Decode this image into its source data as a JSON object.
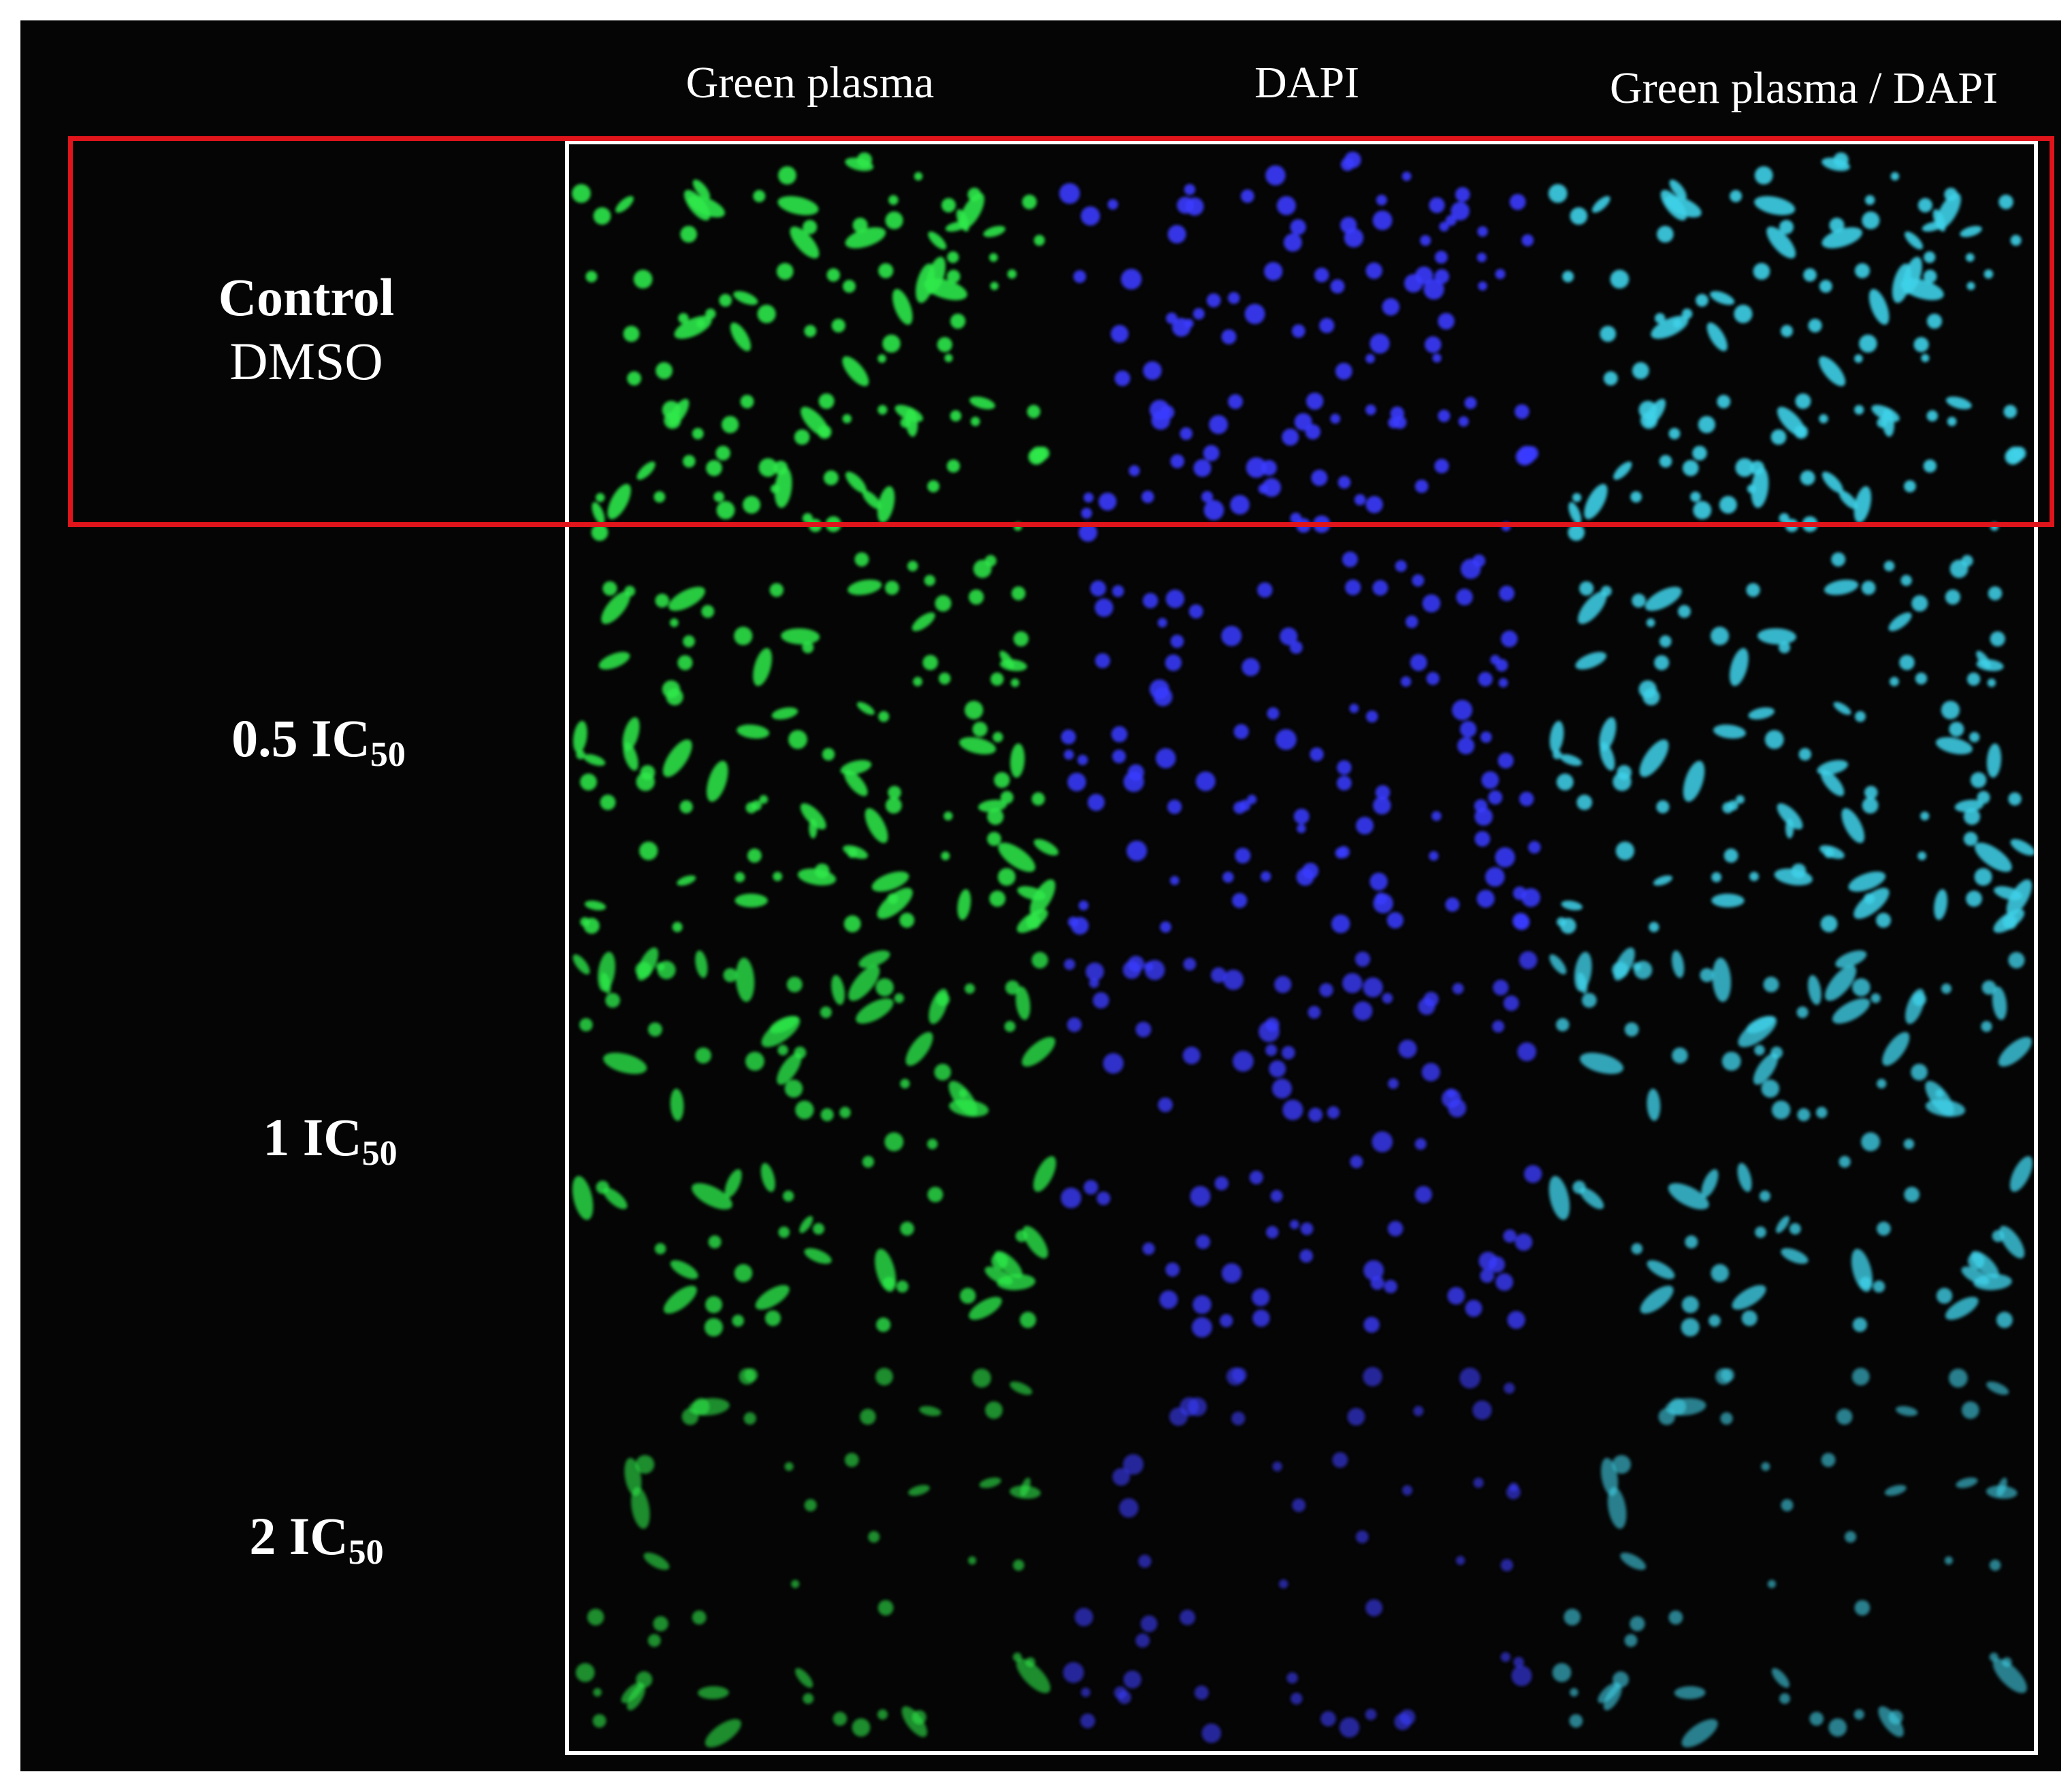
{
  "columns": [
    "Green plasma",
    "DAPI",
    "Green plasma / DAPI"
  ],
  "rows": [
    {
      "label": "Control",
      "sublabel": "DMSO",
      "highlighted": true,
      "intensity": 1.0
    },
    {
      "label": "0.5 IC",
      "subscript": "50",
      "highlighted": false,
      "intensity": 0.95
    },
    {
      "label": "1 IC",
      "subscript": "50",
      "highlighted": false,
      "intensity": 0.8
    },
    {
      "label": "2 IC",
      "subscript": "50",
      "highlighted": false,
      "intensity": 0.45
    }
  ],
  "colors": {
    "background": "#050505",
    "green_channel": "#2ee84a",
    "dapi_channel": "#3a3cff",
    "merge_channel": "#3fd0e8",
    "grid_border": "#ffffff",
    "highlight_border": "#e0141b"
  }
}
